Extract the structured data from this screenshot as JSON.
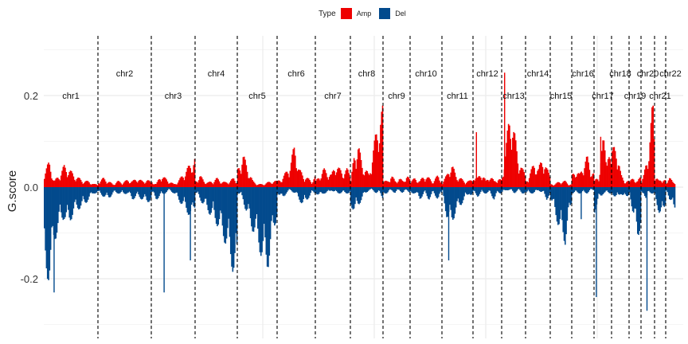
{
  "chart_data": {
    "type": "bar",
    "ylabel": "G.score",
    "legend": {
      "title": "Type",
      "entries": [
        {
          "label": "Amp",
          "color": "#EE0000"
        },
        {
          "label": "Del",
          "color": "#024A8D"
        }
      ],
      "placement": "top"
    },
    "ylim": [
      -0.33,
      0.32
    ],
    "yticks": [
      {
        "value": 0.2,
        "label": "0.2"
      },
      {
        "value": 0.0,
        "label": "0.0"
      },
      {
        "value": -0.2,
        "label": "-0.2"
      }
    ],
    "grid": true,
    "chromosomes": [
      {
        "name": "chr1",
        "amp": [
          0.03,
          0.04,
          0.01,
          0.02,
          0.035,
          0.03,
          0.02,
          0.015,
          0.01,
          0.01,
          0.005,
          0.005
        ],
        "del": [
          -0.15,
          -0.145,
          -0.09,
          -0.06,
          -0.05,
          -0.06,
          -0.04,
          -0.035,
          -0.03,
          -0.02,
          -0.01,
          -0.01
        ],
        "peaks": [
          {
            "pos": 0.18,
            "value": -0.23
          }
        ]
      },
      {
        "name": "chr2",
        "amp": [
          0.01,
          0.015,
          0.01,
          0.005,
          0.01,
          0.008,
          0.012,
          0.01,
          0.015,
          0.01,
          0.012,
          0.008
        ],
        "del": [
          -0.01,
          -0.015,
          -0.02,
          -0.01,
          -0.01,
          -0.012,
          -0.01,
          -0.02,
          -0.015,
          -0.02,
          -0.025,
          -0.02
        ]
      },
      {
        "name": "chr3",
        "amp": [
          0.01,
          0.005,
          0.02,
          0.015,
          0.01,
          0.005,
          0.01,
          0.02,
          0.03,
          0.04,
          0.05
        ],
        "del": [
          -0.01,
          -0.02,
          -0.015,
          -0.01,
          -0.005,
          -0.01,
          -0.02,
          -0.03,
          -0.04,
          -0.05,
          -0.03
        ],
        "peaks": [
          {
            "pos": 0.28,
            "value": -0.23
          },
          {
            "pos": 0.88,
            "value": -0.16
          }
        ]
      },
      {
        "name": "chr4",
        "amp": [
          0.01,
          0.02,
          0.01,
          0.008,
          0.01,
          0.015,
          0.01,
          0.008,
          0.01,
          0.015,
          0.01
        ],
        "del": [
          -0.01,
          -0.02,
          -0.03,
          -0.04,
          -0.05,
          -0.06,
          -0.07,
          -0.09,
          -0.11,
          -0.14,
          -0.15
        ]
      },
      {
        "name": "chr5",
        "amp": [
          0.03,
          0.055,
          0.03,
          0.01,
          0.005,
          0.005,
          0.008,
          0.01,
          0.01
        ],
        "del": [
          -0.01,
          -0.02,
          -0.05,
          -0.07,
          -0.09,
          -0.12,
          -0.13,
          -0.08,
          -0.04
        ]
      },
      {
        "name": "chr6",
        "amp": [
          0.01,
          0.015,
          0.025,
          0.04,
          0.07,
          0.03,
          0.02,
          0.015,
          0.01,
          0.02
        ],
        "del": [
          -0.01,
          -0.02,
          -0.01,
          -0.005,
          -0.01,
          -0.02,
          -0.03,
          -0.02,
          -0.01,
          -0.01
        ]
      },
      {
        "name": "chr7",
        "amp": [
          0.01,
          0.02,
          0.03,
          0.025,
          0.02,
          0.04,
          0.03,
          0.025,
          0.03,
          0.02
        ],
        "del": [
          -0.01,
          -0.015,
          -0.01,
          -0.01,
          -0.005,
          -0.01,
          -0.01,
          -0.01,
          -0.01,
          -0.01
        ]
      },
      {
        "name": "chr8",
        "amp": [
          0.01,
          0.06,
          0.07,
          0.04,
          0.03,
          0.02,
          0.06,
          0.09,
          0.12,
          0.13
        ],
        "del": [
          -0.03,
          -0.04,
          -0.03,
          -0.02,
          -0.01,
          -0.005,
          -0.005,
          -0.01,
          -0.01,
          -0.02
        ]
      },
      {
        "name": "chr9",
        "amp": [
          0.01,
          0.01,
          0.02,
          0.01,
          0.015,
          0.01,
          0.02,
          0.01
        ],
        "del": [
          -0.01,
          -0.01,
          -0.005,
          -0.01,
          -0.005,
          -0.01,
          -0.005,
          -0.01
        ]
      },
      {
        "name": "chr10",
        "amp": [
          0.01,
          0.015,
          0.01,
          0.02,
          0.015,
          0.01,
          0.02,
          0.01
        ],
        "del": [
          -0.01,
          -0.01,
          -0.02,
          -0.01,
          -0.02,
          -0.01,
          -0.02,
          -0.01
        ]
      },
      {
        "name": "chr11",
        "amp": [
          0.01,
          0.02,
          0.04,
          0.02,
          0.015,
          0.01,
          0.01,
          0.015
        ],
        "del": [
          -0.01,
          -0.05,
          -0.06,
          -0.04,
          -0.03,
          -0.02,
          -0.01,
          -0.02
        ],
        "peaks": [
          {
            "pos": 0.2,
            "value": -0.16
          }
        ]
      },
      {
        "name": "chr12",
        "amp": [
          0.02,
          0.015,
          0.025,
          0.01,
          0.02,
          0.01,
          0.015,
          0.01
        ],
        "del": [
          -0.01,
          -0.015,
          -0.01,
          -0.01,
          -0.01,
          -0.02,
          -0.01,
          -0.01
        ],
        "peaks": [
          {
            "pos": 0.1,
            "value": 0.12
          }
        ]
      },
      {
        "name": "chr13",
        "amp": [
          0.02,
          0.07,
          0.13,
          0.09,
          0.05,
          0.03,
          0.02
        ],
        "del": [
          -0.01,
          -0.005,
          -0.005,
          -0.01,
          -0.005,
          -0.01,
          -0.01
        ],
        "peaks": [
          {
            "pos": 0.1,
            "value": 0.25
          }
        ]
      },
      {
        "name": "chr14",
        "amp": [
          0.01,
          0.025,
          0.04,
          0.03,
          0.05,
          0.03,
          0.02
        ],
        "del": [
          -0.01,
          -0.01,
          -0.01,
          -0.005,
          -0.01,
          -0.02,
          -0.01
        ]
      },
      {
        "name": "chr15",
        "amp": [
          0.005,
          0.005,
          0.008,
          0.01,
          0.01,
          0.005,
          0.005
        ],
        "del": [
          -0.02,
          -0.04,
          -0.06,
          -0.08,
          -0.09,
          -0.05,
          -0.02
        ]
      },
      {
        "name": "chr16",
        "amp": [
          0.02,
          0.03,
          0.02,
          0.04,
          0.05,
          0.03,
          0.02
        ],
        "del": [
          -0.01,
          -0.01,
          -0.01,
          -0.01,
          -0.01,
          -0.005,
          -0.005
        ],
        "peaks": [
          {
            "pos": 0.4,
            "value": -0.07
          }
        ]
      },
      {
        "name": "chr17",
        "amp": [
          0.01,
          0.02,
          0.08,
          0.06,
          0.03
        ],
        "del": [
          -0.04,
          -0.02,
          -0.01,
          -0.01,
          -0.01
        ],
        "peaks": [
          {
            "pos": 0.1,
            "value": -0.24
          },
          {
            "pos": 0.35,
            "value": 0.11
          }
        ]
      },
      {
        "name": "chr18",
        "amp": [
          0.06,
          0.07,
          0.02,
          0.01,
          0.01
        ],
        "del": [
          -0.01,
          -0.02,
          -0.01,
          -0.02,
          -0.01
        ]
      },
      {
        "name": "chr19",
        "amp": [
          0.01,
          0.015,
          0.01,
          0.02
        ],
        "del": [
          -0.01,
          -0.05,
          -0.08,
          -0.06
        ]
      },
      {
        "name": "chr20",
        "amp": [
          0.01,
          0.02,
          0.04,
          0.06,
          0.1,
          0.14,
          0.05
        ],
        "del": [
          -0.01,
          -0.01,
          -0.02,
          -0.01,
          -0.01,
          -0.01,
          -0.01
        ],
        "peaks": [
          {
            "pos": 0.4,
            "value": -0.27
          }
        ]
      },
      {
        "name": "chr21",
        "amp": [
          0.02,
          0.01,
          0.015,
          0.01
        ],
        "del": [
          -0.02,
          -0.04,
          -0.05,
          -0.02
        ]
      },
      {
        "name": "chr22",
        "amp": [
          0.01,
          0.015,
          0.01,
          0.01
        ],
        "del": [
          -0.01,
          -0.02,
          -0.02,
          -0.09
        ]
      }
    ]
  }
}
